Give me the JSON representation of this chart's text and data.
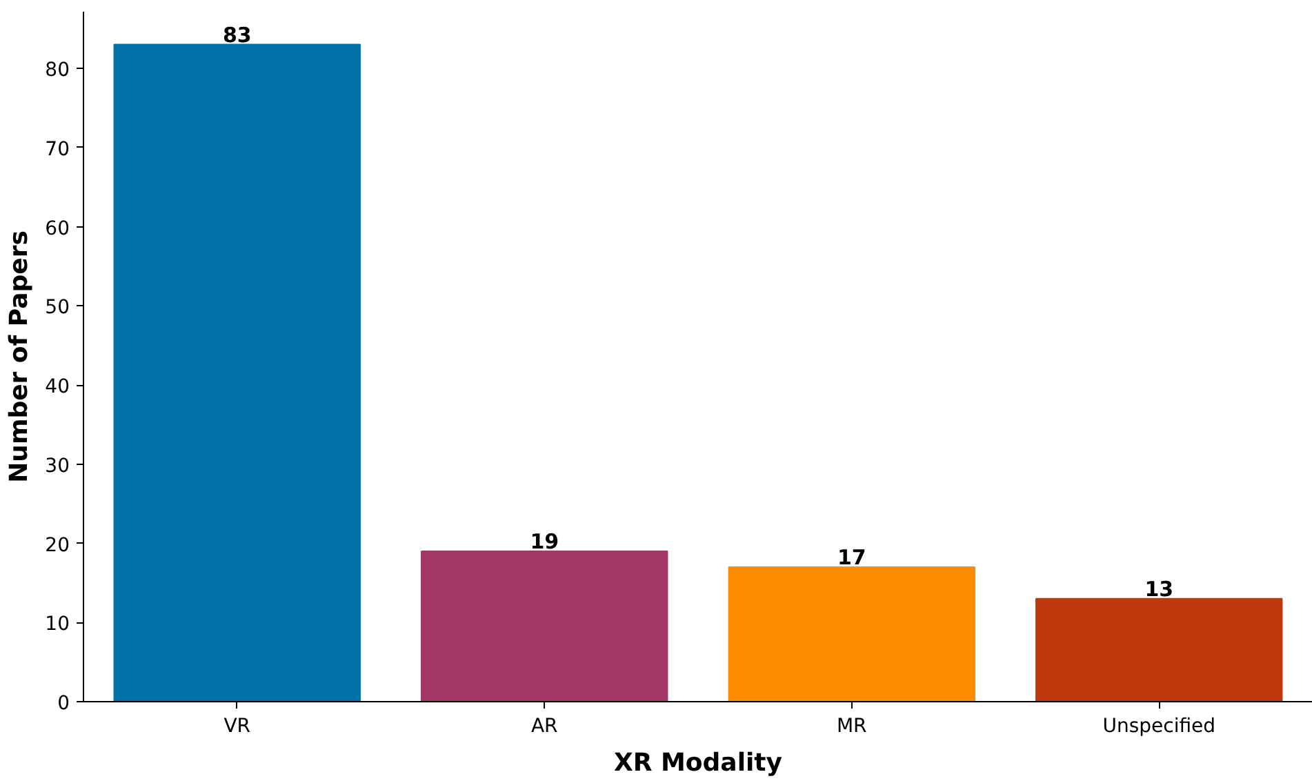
{
  "chart_data": {
    "type": "bar",
    "xlabel": "XR Modality",
    "ylabel": "Number of Papers",
    "categories": [
      "VR",
      "AR",
      "MR",
      "Unspecified"
    ],
    "values": [
      83,
      19,
      17,
      13
    ],
    "colors": [
      "#0072a8",
      "#a43667",
      "#ff8c00",
      "#c0370e"
    ],
    "ylim": [
      0,
      87.15
    ],
    "yticks": [
      0,
      10,
      20,
      30,
      40,
      50,
      60,
      70,
      80
    ],
    "data_labels": true,
    "grid": false
  }
}
